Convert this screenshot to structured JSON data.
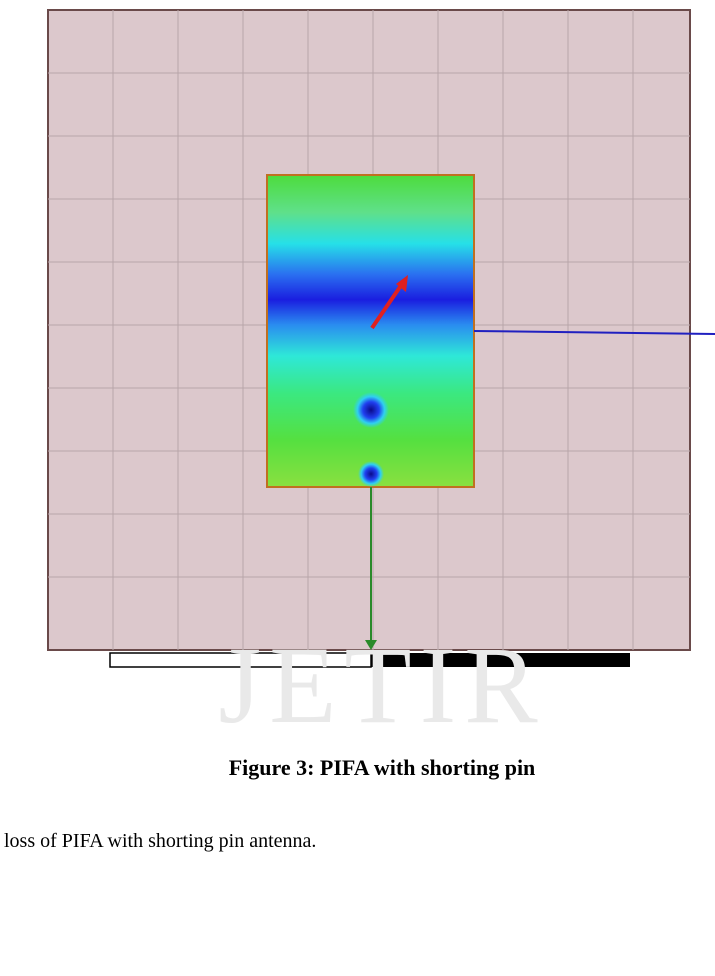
{
  "figure": {
    "watermark": "JETIR",
    "caption": "Figure 3: PIFA with shorting pin"
  },
  "body": {
    "text": "loss of PIFA with shorting pin antenna."
  }
}
